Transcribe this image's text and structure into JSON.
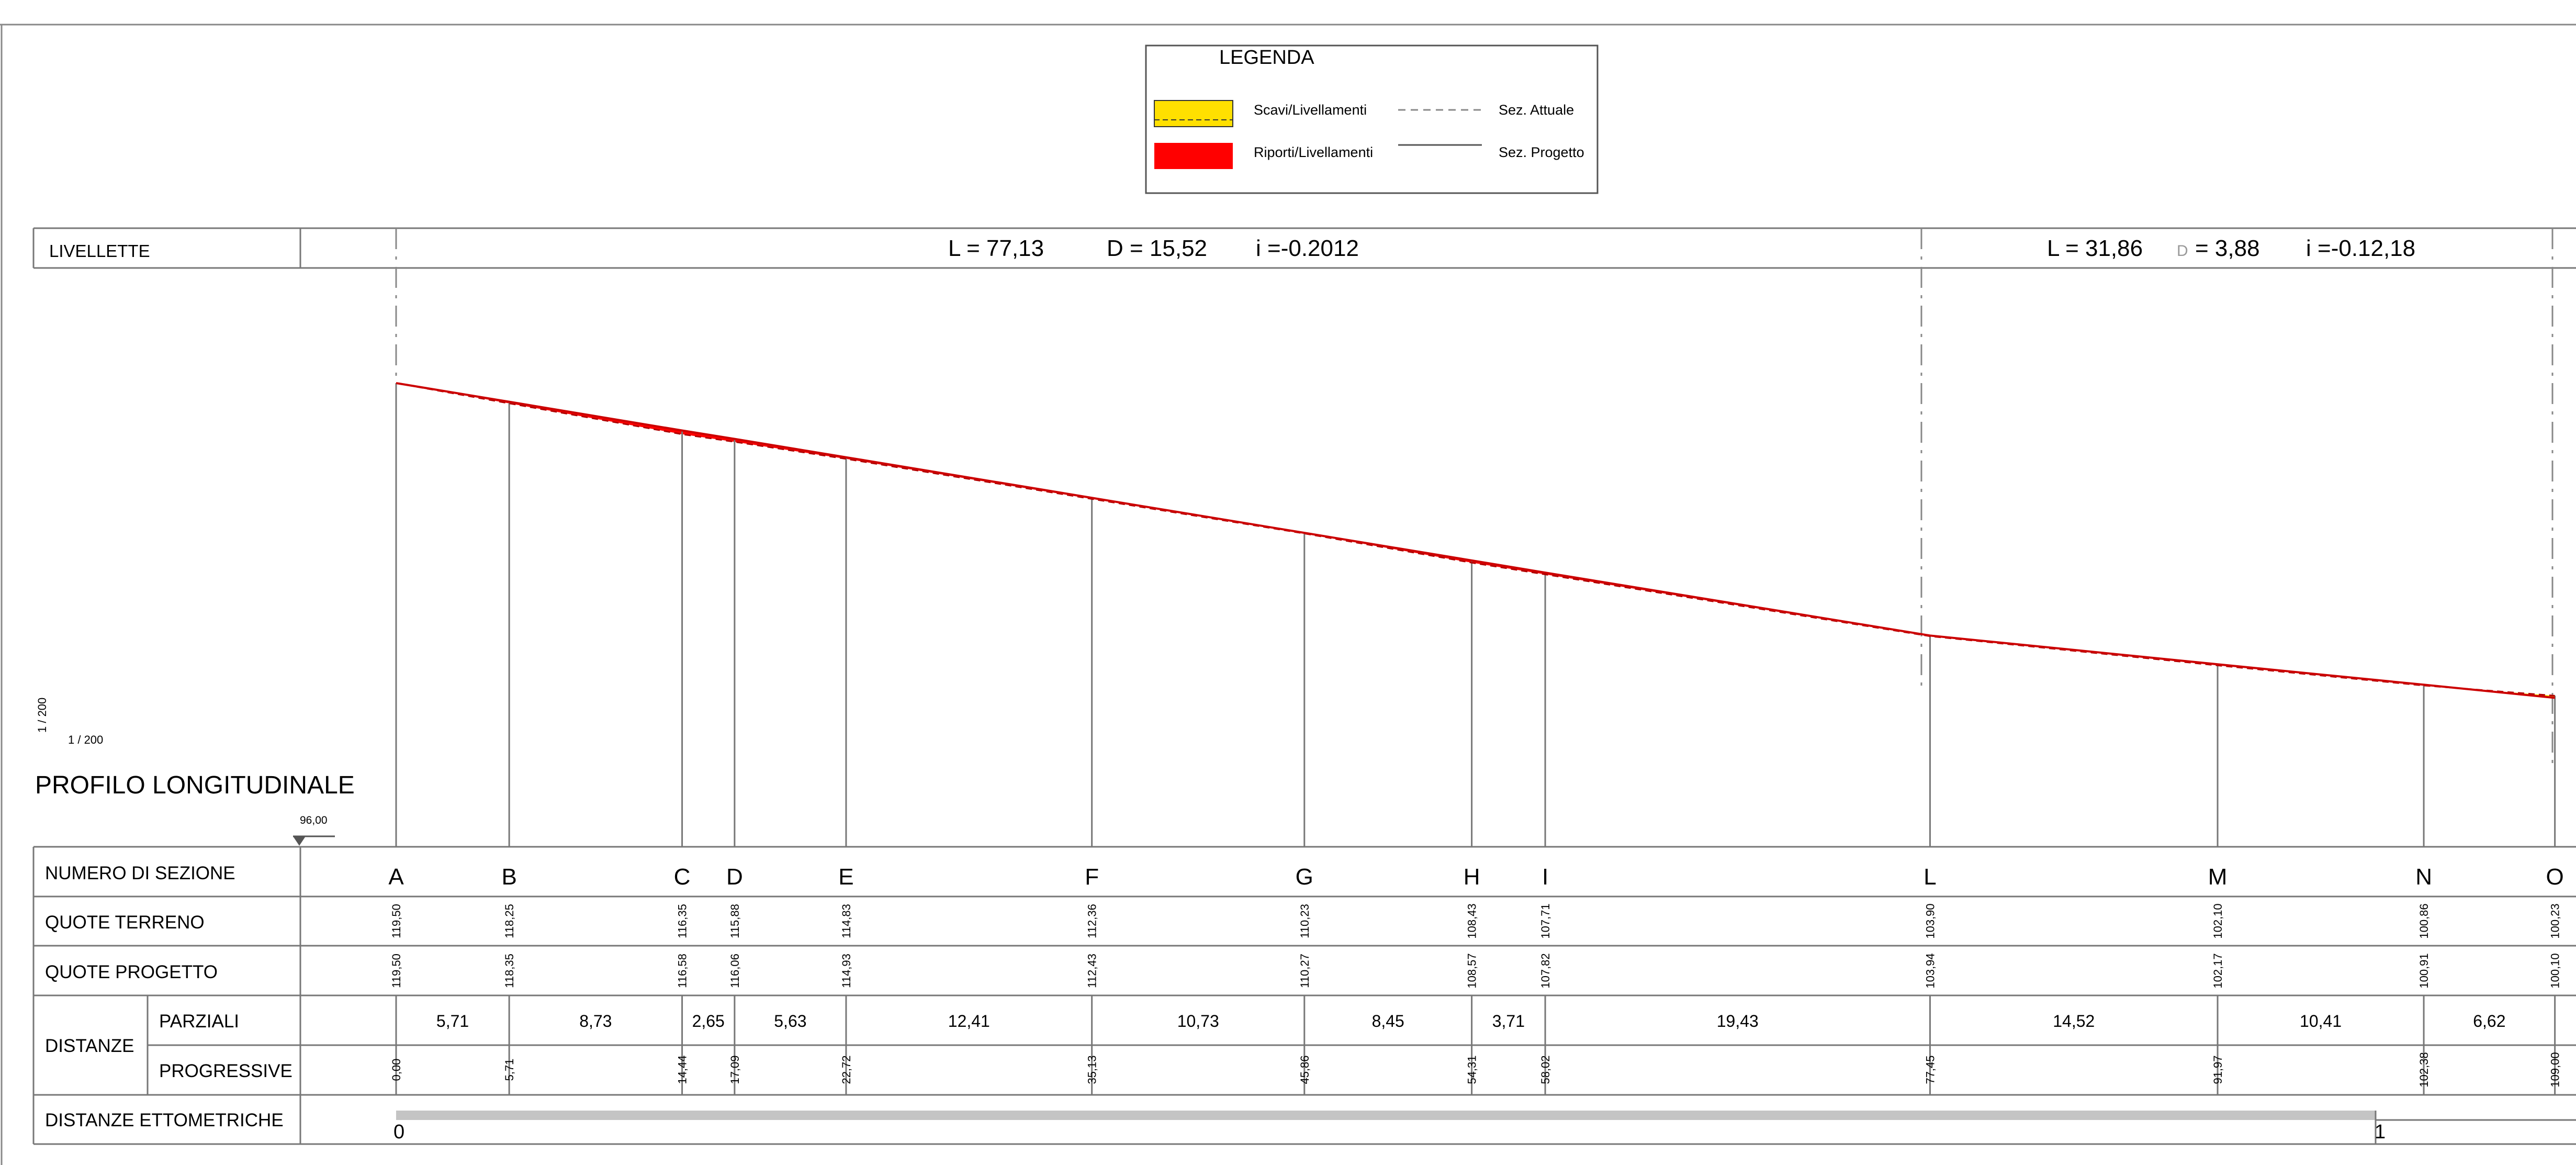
{
  "legend": {
    "title": "LEGENDA",
    "cut_label": "Scavi/Livellamenti",
    "fill_label": "Riporti/Livellamenti",
    "existing_label": "Sez. Attuale",
    "project_label": "Sez. Progetto",
    "cut_color": "#FFE000",
    "fill_color": "#FF0000"
  },
  "livellette": {
    "label": "LIVELLETTE",
    "segment1": {
      "L": "L = 77,13",
      "D": "D = 15,52",
      "i": "i =-0.2012"
    },
    "segment2": {
      "L": "L = 31,86",
      "D_symbol": "D",
      "D": "= 3,88",
      "i": "i =-0.12,18"
    }
  },
  "scale_vertical": "1 / 200",
  "scale_horizontal": "1 / 200",
  "title": "PROFILO LONGITUDINALE",
  "datum": "96,00",
  "rows": {
    "section_number": "NUMERO DI SEZIONE",
    "ground_elev": "QUOTE TERRENO",
    "project_elev": "QUOTE PROGETTO",
    "distances": "DISTANZE",
    "partial": "PARZIALI",
    "progressive": "PROGRESSIVE",
    "hectometric": "DISTANZE ETTOMETRICHE"
  },
  "hectometric_labels": [
    "0",
    "1"
  ],
  "sections": [
    {
      "name": "A",
      "terreno": "119,50",
      "progetto": "119,50",
      "progressiva": "0,00"
    },
    {
      "name": "B",
      "terreno": "118,25",
      "progetto": "118,35",
      "progressiva": "5,71"
    },
    {
      "name": "C",
      "terreno": "116,35",
      "progetto": "116,58",
      "progressiva": "14,44"
    },
    {
      "name": "D",
      "terreno": "115,88",
      "progetto": "116,06",
      "progressiva": "17,09"
    },
    {
      "name": "E",
      "terreno": "114,83",
      "progetto": "114,93",
      "progressiva": "22,72"
    },
    {
      "name": "F",
      "terreno": "112,36",
      "progetto": "112,43",
      "progressiva": "35,13"
    },
    {
      "name": "G",
      "terreno": "110,23",
      "progetto": "110,27",
      "progressiva": "45,86"
    },
    {
      "name": "H",
      "terreno": "108,43",
      "progetto": "108,57",
      "progressiva": "54,31"
    },
    {
      "name": "I",
      "terreno": "107,71",
      "progetto": "107,82",
      "progressiva": "58,02"
    },
    {
      "name": "L",
      "terreno": "103,90",
      "progetto": "103,94",
      "progressiva": "77,45"
    },
    {
      "name": "M",
      "terreno": "102,10",
      "progetto": "102,17",
      "progressiva": "91,97"
    },
    {
      "name": "N",
      "terreno": "100,86",
      "progetto": "100,91",
      "progressiva": "102,38"
    },
    {
      "name": "O",
      "terreno": "100,23",
      "progetto": "100,10",
      "progressiva": "109,00"
    }
  ],
  "partials": [
    "5,71",
    "8,73",
    "2,65",
    "5,63",
    "12,41",
    "10,73",
    "8,45",
    "3,71",
    "19,43",
    "14,52",
    "10,41",
    "6,62"
  ]
}
